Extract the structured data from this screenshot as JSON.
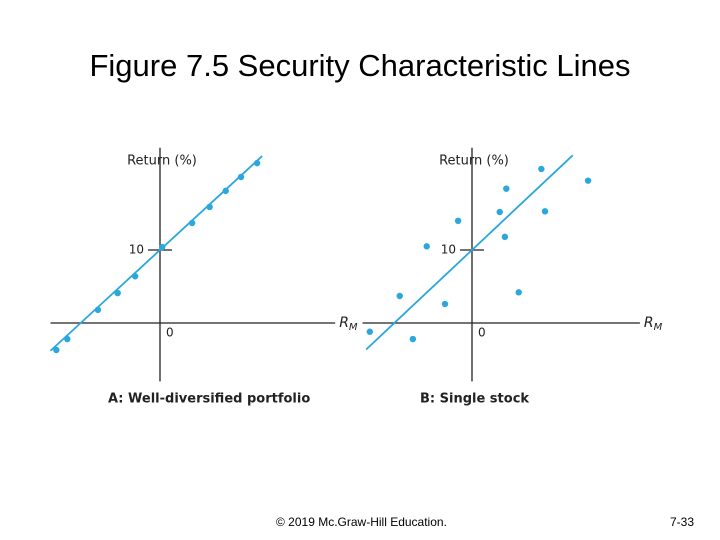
{
  "title": "Figure 7.5 Security Characteristic Lines",
  "footer": {
    "copyright": "© 2019 Mc.Graw-Hill Education.",
    "page": "7-33"
  },
  "chart_data": [
    {
      "type": "scatter",
      "caption": "A: Well-diversified portfolio",
      "y_label": "Return (%)",
      "x_label": "R",
      "x_label_subscript": "M",
      "color": "#2aa7dc",
      "xlim": [
        -15,
        24
      ],
      "ylim": [
        -8,
        24
      ],
      "yticks": [
        0,
        10
      ],
      "x": [
        -14.2,
        -12.7,
        -8.5,
        -5.8,
        -3.4,
        0.3,
        4.4,
        6.8,
        9.0,
        11.1,
        13.3
      ],
      "y": [
        -3.7,
        -2.2,
        1.8,
        4.1,
        6.4,
        10.4,
        13.7,
        15.9,
        18.1,
        20.0,
        21.9
      ],
      "fit_line": {
        "intercept": 10,
        "slope": 0.92,
        "x_range": [
          -15,
          14
        ]
      }
    },
    {
      "type": "scatter",
      "caption": "B: Single stock",
      "y_label": "Return (%)",
      "x_label": "R",
      "x_label_subscript": "M",
      "color": "#2aa7dc",
      "xlim": [
        -15,
        23
      ],
      "ylim": [
        -8,
        24
      ],
      "yticks": [
        0,
        10
      ],
      "x": [
        -14.0,
        -8.1,
        -9.9,
        -6.2,
        -3.7,
        -1.9,
        3.8,
        4.5,
        4.7,
        6.4,
        9.5,
        10.0,
        15.9
      ],
      "y": [
        -1.2,
        -2.2,
        3.7,
        10.5,
        2.6,
        14.0,
        15.2,
        11.8,
        18.4,
        4.2,
        21.1,
        15.3,
        19.5
      ],
      "fit_line": {
        "intercept": 10,
        "slope": 0.94,
        "x_range": [
          -14.5,
          13.8
        ]
      }
    }
  ]
}
